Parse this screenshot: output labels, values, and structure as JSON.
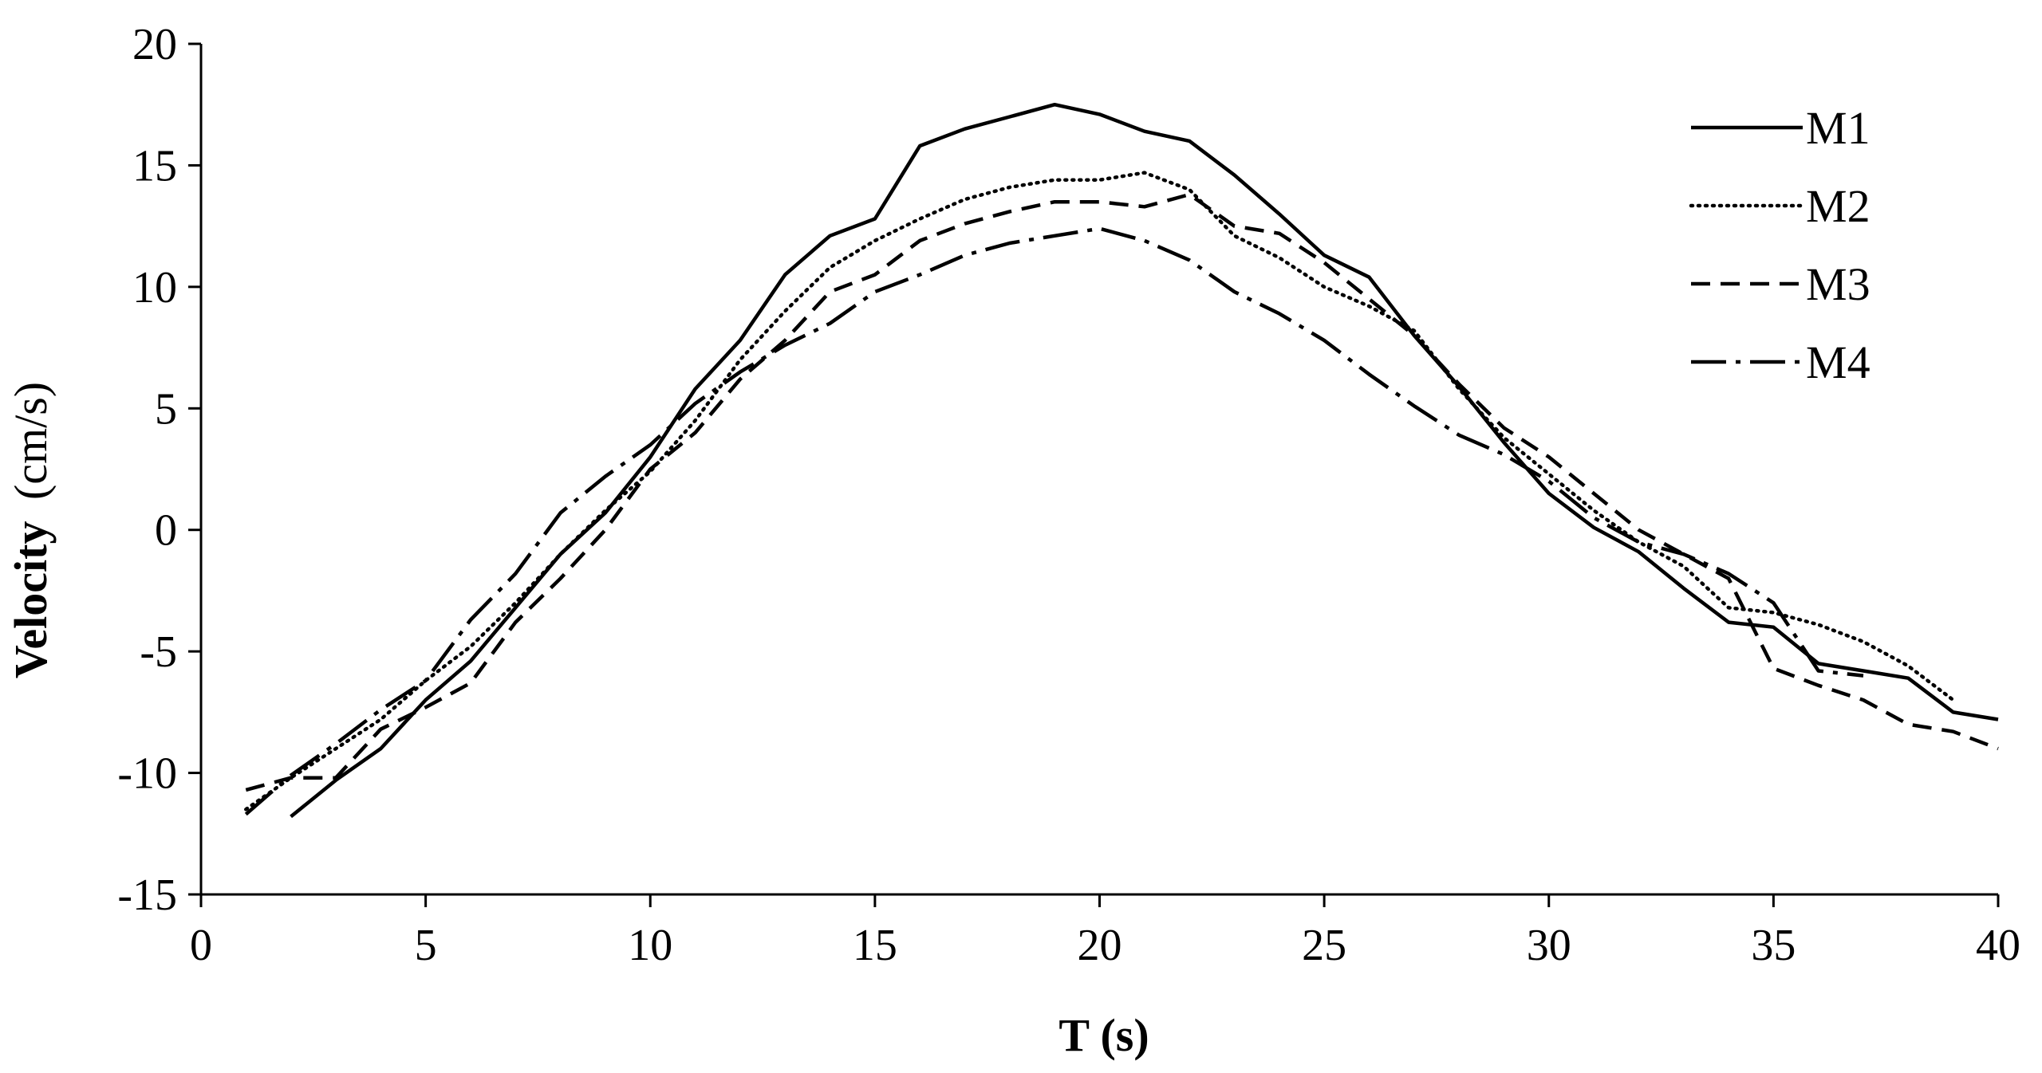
{
  "chart_data": {
    "type": "line",
    "title": "",
    "xlabel": "T (s)",
    "ylabel_main": "Velocity",
    "ylabel_unit": "(cm/s)",
    "xlim": [
      0,
      40
    ],
    "ylim": [
      -15,
      20
    ],
    "xticks": [
      0,
      5,
      10,
      15,
      20,
      25,
      30,
      35,
      40
    ],
    "yticks": [
      -15,
      -10,
      -5,
      0,
      5,
      10,
      15,
      20
    ],
    "grid": false,
    "legend_position": "top-right",
    "series": [
      {
        "name": "M1",
        "style": "solid",
        "x": [
          2,
          3,
          4,
          5,
          6,
          7,
          8,
          9,
          10,
          11,
          12,
          13,
          14,
          15,
          16,
          17,
          18,
          19,
          20,
          21,
          22,
          23,
          24,
          25,
          26,
          27,
          28,
          29,
          30,
          31,
          32,
          33,
          34,
          35,
          36,
          37,
          38,
          39,
          40
        ],
        "y": [
          -11.8,
          -10.3,
          -9.0,
          -7.0,
          -5.4,
          -3.2,
          -1.0,
          0.7,
          3.0,
          5.8,
          7.8,
          10.5,
          12.1,
          12.8,
          15.8,
          16.5,
          17.0,
          17.5,
          17.1,
          16.4,
          16.0,
          14.6,
          13.0,
          11.3,
          10.4,
          8.0,
          5.9,
          3.6,
          1.5,
          0.1,
          -0.9,
          -2.4,
          -3.8,
          -4.0,
          -5.5,
          -5.8,
          -6.1,
          -7.5,
          -7.8
        ]
      },
      {
        "name": "M2",
        "style": "dotted",
        "x": [
          1,
          2,
          3,
          4,
          5,
          6,
          7,
          8,
          9,
          10,
          11,
          12,
          13,
          14,
          15,
          16,
          17,
          18,
          19,
          20,
          21,
          22,
          23,
          24,
          25,
          26,
          27,
          28,
          29,
          30,
          31,
          32,
          33,
          34,
          35,
          36,
          37,
          38,
          39
        ],
        "y": [
          -11.5,
          -10.2,
          -9.0,
          -7.8,
          -6.2,
          -4.8,
          -3.0,
          -1.0,
          0.8,
          2.4,
          4.5,
          7.0,
          9.0,
          10.8,
          11.9,
          12.8,
          13.6,
          14.1,
          14.4,
          14.4,
          14.7,
          14.0,
          12.1,
          11.2,
          10.0,
          9.2,
          8.2,
          5.8,
          3.8,
          2.3,
          0.8,
          -0.5,
          -1.5,
          -3.2,
          -3.4,
          -3.9,
          -4.6,
          -5.6,
          -7.0
        ]
      },
      {
        "name": "M3",
        "style": "dashed",
        "x": [
          1,
          2,
          3,
          4,
          5,
          6,
          7,
          8,
          9,
          10,
          11,
          12,
          13,
          14,
          15,
          16,
          17,
          18,
          19,
          20,
          21,
          22,
          23,
          24,
          25,
          26,
          27,
          28,
          29,
          30,
          31,
          32,
          33,
          34,
          35,
          36,
          37,
          38,
          39,
          40
        ],
        "y": [
          -10.7,
          -10.2,
          -10.2,
          -8.2,
          -7.3,
          -6.3,
          -3.8,
          -2.0,
          0.0,
          2.5,
          4.0,
          6.2,
          7.8,
          9.8,
          10.5,
          11.9,
          12.6,
          13.1,
          13.5,
          13.5,
          13.3,
          13.8,
          12.5,
          12.2,
          11.0,
          9.5,
          8.0,
          6.0,
          4.2,
          3.0,
          1.5,
          0.0,
          -1.0,
          -2.0,
          -5.7,
          -6.4,
          -7.0,
          -8.0,
          -8.3,
          -9.0
        ]
      },
      {
        "name": "M4",
        "style": "dashdot",
        "x": [
          1,
          2,
          3,
          4,
          5,
          6,
          7,
          8,
          9,
          10,
          11,
          12,
          13,
          14,
          15,
          16,
          17,
          18,
          19,
          20,
          21,
          22,
          23,
          24,
          25,
          26,
          27,
          28,
          29,
          30,
          31,
          32,
          33,
          34,
          35,
          36,
          37
        ],
        "y": [
          -11.7,
          -10.1,
          -8.8,
          -7.4,
          -6.2,
          -3.7,
          -1.8,
          0.7,
          2.2,
          3.5,
          5.2,
          6.5,
          7.6,
          8.5,
          9.8,
          10.5,
          11.3,
          11.8,
          12.1,
          12.4,
          11.9,
          11.1,
          9.8,
          8.9,
          7.8,
          6.4,
          5.1,
          3.9,
          3.1,
          2.0,
          0.5,
          -0.5,
          -1.0,
          -1.8,
          -3.0,
          -5.8,
          -6.0
        ]
      }
    ]
  }
}
